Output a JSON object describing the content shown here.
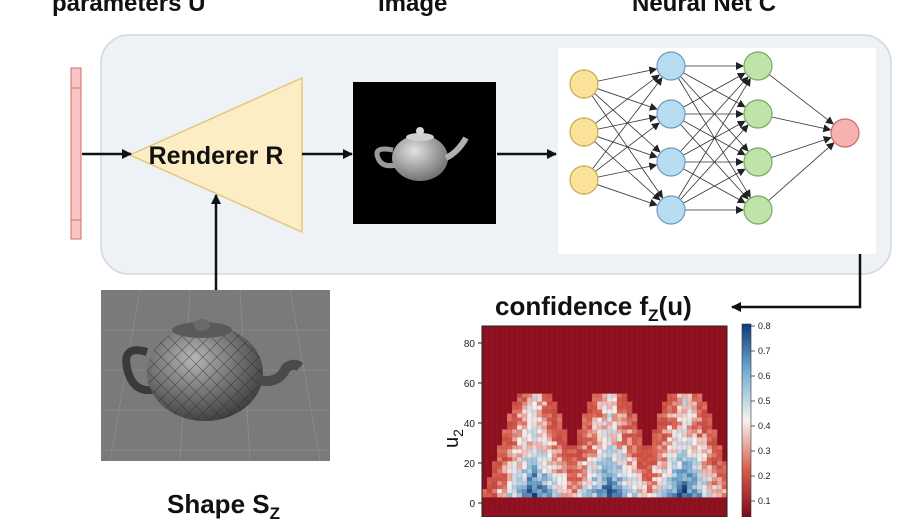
{
  "labels": {
    "parameters": "parameters U",
    "image": "Image",
    "neural_net": "Neural Net C",
    "renderer": "Renderer R",
    "confidence": "confidence f",
    "confidence_sub": "Z",
    "confidence_arg": "(u)",
    "shape": "Shape S",
    "shape_sub": "Z"
  },
  "colors": {
    "panel_bg": "#eef2f6",
    "renderer_fill": "#fcedc4",
    "input_node": "#fce39b",
    "hidden_node": "#b8dcf2",
    "hidden2_node": "#bfe3a9",
    "output_node": "#f6b2b0",
    "param_bar": "#f7c5c5"
  },
  "heatmap": {
    "ylabel": "u",
    "ylabel_sub": "2",
    "yticks": [
      "80",
      "60",
      "40",
      "20",
      "0"
    ],
    "colorbar_ticks": [
      "0.8",
      "0.7",
      "0.6",
      "0.5",
      "0.4",
      "0.3",
      "0.2",
      "0.1"
    ]
  }
}
